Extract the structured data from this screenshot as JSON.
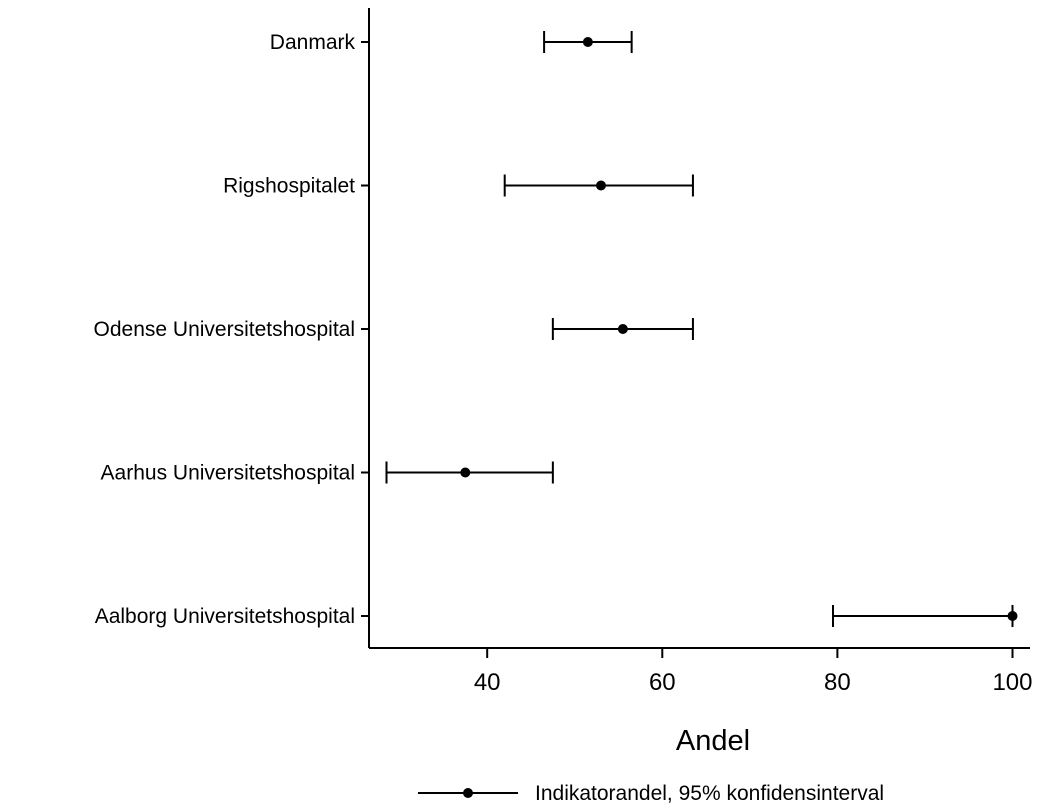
{
  "chart_data": {
    "type": "scatter",
    "orientation": "horizontal",
    "categories": [
      "Danmark",
      "Rigshospitalet",
      "Odense Universitetshospital",
      "Aarhus Universitetshospital",
      "Aalborg Universitetshospital"
    ],
    "series": [
      {
        "name": "Indikatorandel, 95% konfidensinterval",
        "values": [
          51.5,
          53.0,
          55.5,
          37.5,
          100.0
        ],
        "ci_lower": [
          46.5,
          42.0,
          47.5,
          28.5,
          79.5
        ],
        "ci_upper": [
          56.5,
          63.5,
          63.5,
          47.5,
          100.0
        ]
      }
    ],
    "xlabel": "Andel",
    "ylabel": "",
    "xlim": [
      26.5,
      102
    ],
    "xticks": [
      40,
      60,
      80,
      100
    ],
    "grid": false,
    "legend_position": "bottom",
    "colors": {
      "marks": "#000000",
      "axes": "#000000",
      "background": "#ffffff"
    }
  }
}
